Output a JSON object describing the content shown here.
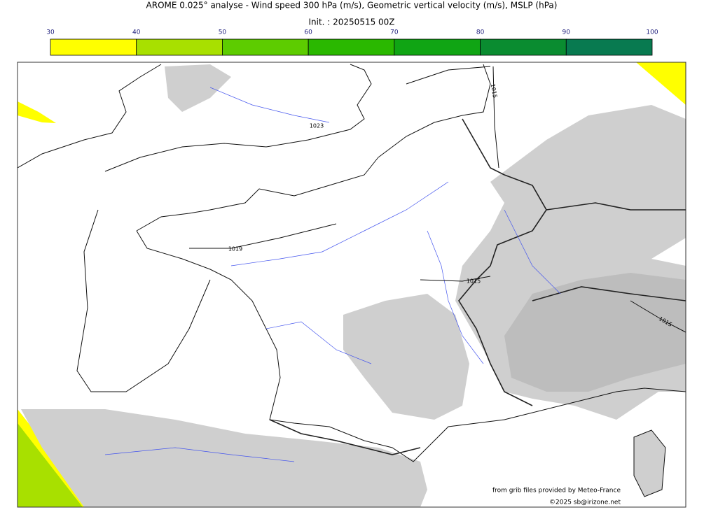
{
  "title": "AROME 0.025° analyse - Wind speed 300 hPa (m/s), Geometric vertical velocity (m/s), MSLP (hPa)",
  "subtitle": "Init. : 20250515 00Z",
  "colorbar": {
    "ticks": [
      30,
      40,
      50,
      60,
      70,
      80,
      90,
      100
    ],
    "colors": [
      "#ffff00",
      "#a8e000",
      "#5dcc00",
      "#2ab800",
      "#10a514",
      "#0a8c30",
      "#087a50"
    ]
  },
  "isobar_labels": [
    "1023",
    "1019",
    "1015",
    "1015",
    "1015"
  ],
  "credits": [
    "from grib files provided by Meteo-France",
    "©2025 sb@irizone.net"
  ]
}
